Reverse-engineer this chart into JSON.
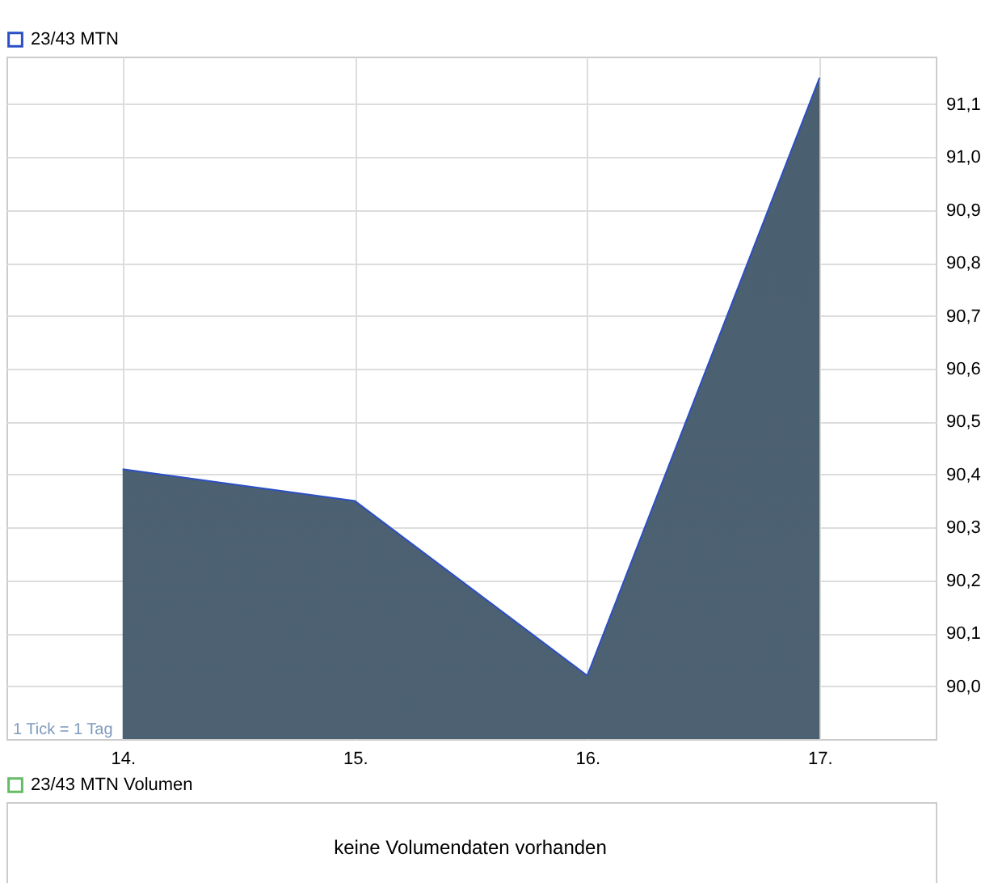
{
  "chart_data": [
    {
      "type": "area",
      "categories": [
        "14.",
        "15.",
        "16.",
        "17."
      ],
      "series": [
        {
          "name": "23/43 MTN",
          "color": "#2b4fc4",
          "values": [
            90.41,
            90.35,
            90.02,
            91.15
          ]
        }
      ],
      "ylim": [
        89.9,
        91.19
      ],
      "yticks": [
        {
          "value": 90.0,
          "label": "90,0"
        },
        {
          "value": 90.1,
          "label": "90,1"
        },
        {
          "value": 90.2,
          "label": "90,2"
        },
        {
          "value": 90.3,
          "label": "90,3"
        },
        {
          "value": 90.4,
          "label": "90,4"
        },
        {
          "value": 90.5,
          "label": "90,5"
        },
        {
          "value": 90.6,
          "label": "90,6"
        },
        {
          "value": 90.7,
          "label": "90,7"
        },
        {
          "value": 90.8,
          "label": "90,8"
        },
        {
          "value": 90.9,
          "label": "90,9"
        },
        {
          "value": 91.0,
          "label": "91,0"
        },
        {
          "value": 91.1,
          "label": "91,1"
        }
      ],
      "grid": true,
      "legend": "top left",
      "annotations": [
        "1 Tick = 1 Tag"
      ]
    },
    {
      "type": "other",
      "title": "23/43 MTN Volumen",
      "annotations": [
        "keine Volumendaten vorhanden"
      ]
    }
  ]
}
